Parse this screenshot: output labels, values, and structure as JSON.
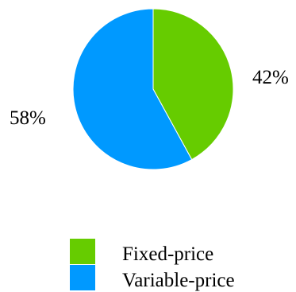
{
  "chart_data": {
    "type": "pie",
    "title": "",
    "slices": [
      {
        "label": "Fixed-price",
        "value": 42,
        "value_label": "42%",
        "color": "#66CC00"
      },
      {
        "label": "Variable-price",
        "value": 58,
        "value_label": "58%",
        "color": "#0099FF"
      }
    ],
    "start": "12 o'clock",
    "direction": "clockwise",
    "legend": {
      "position": "bottom"
    }
  }
}
